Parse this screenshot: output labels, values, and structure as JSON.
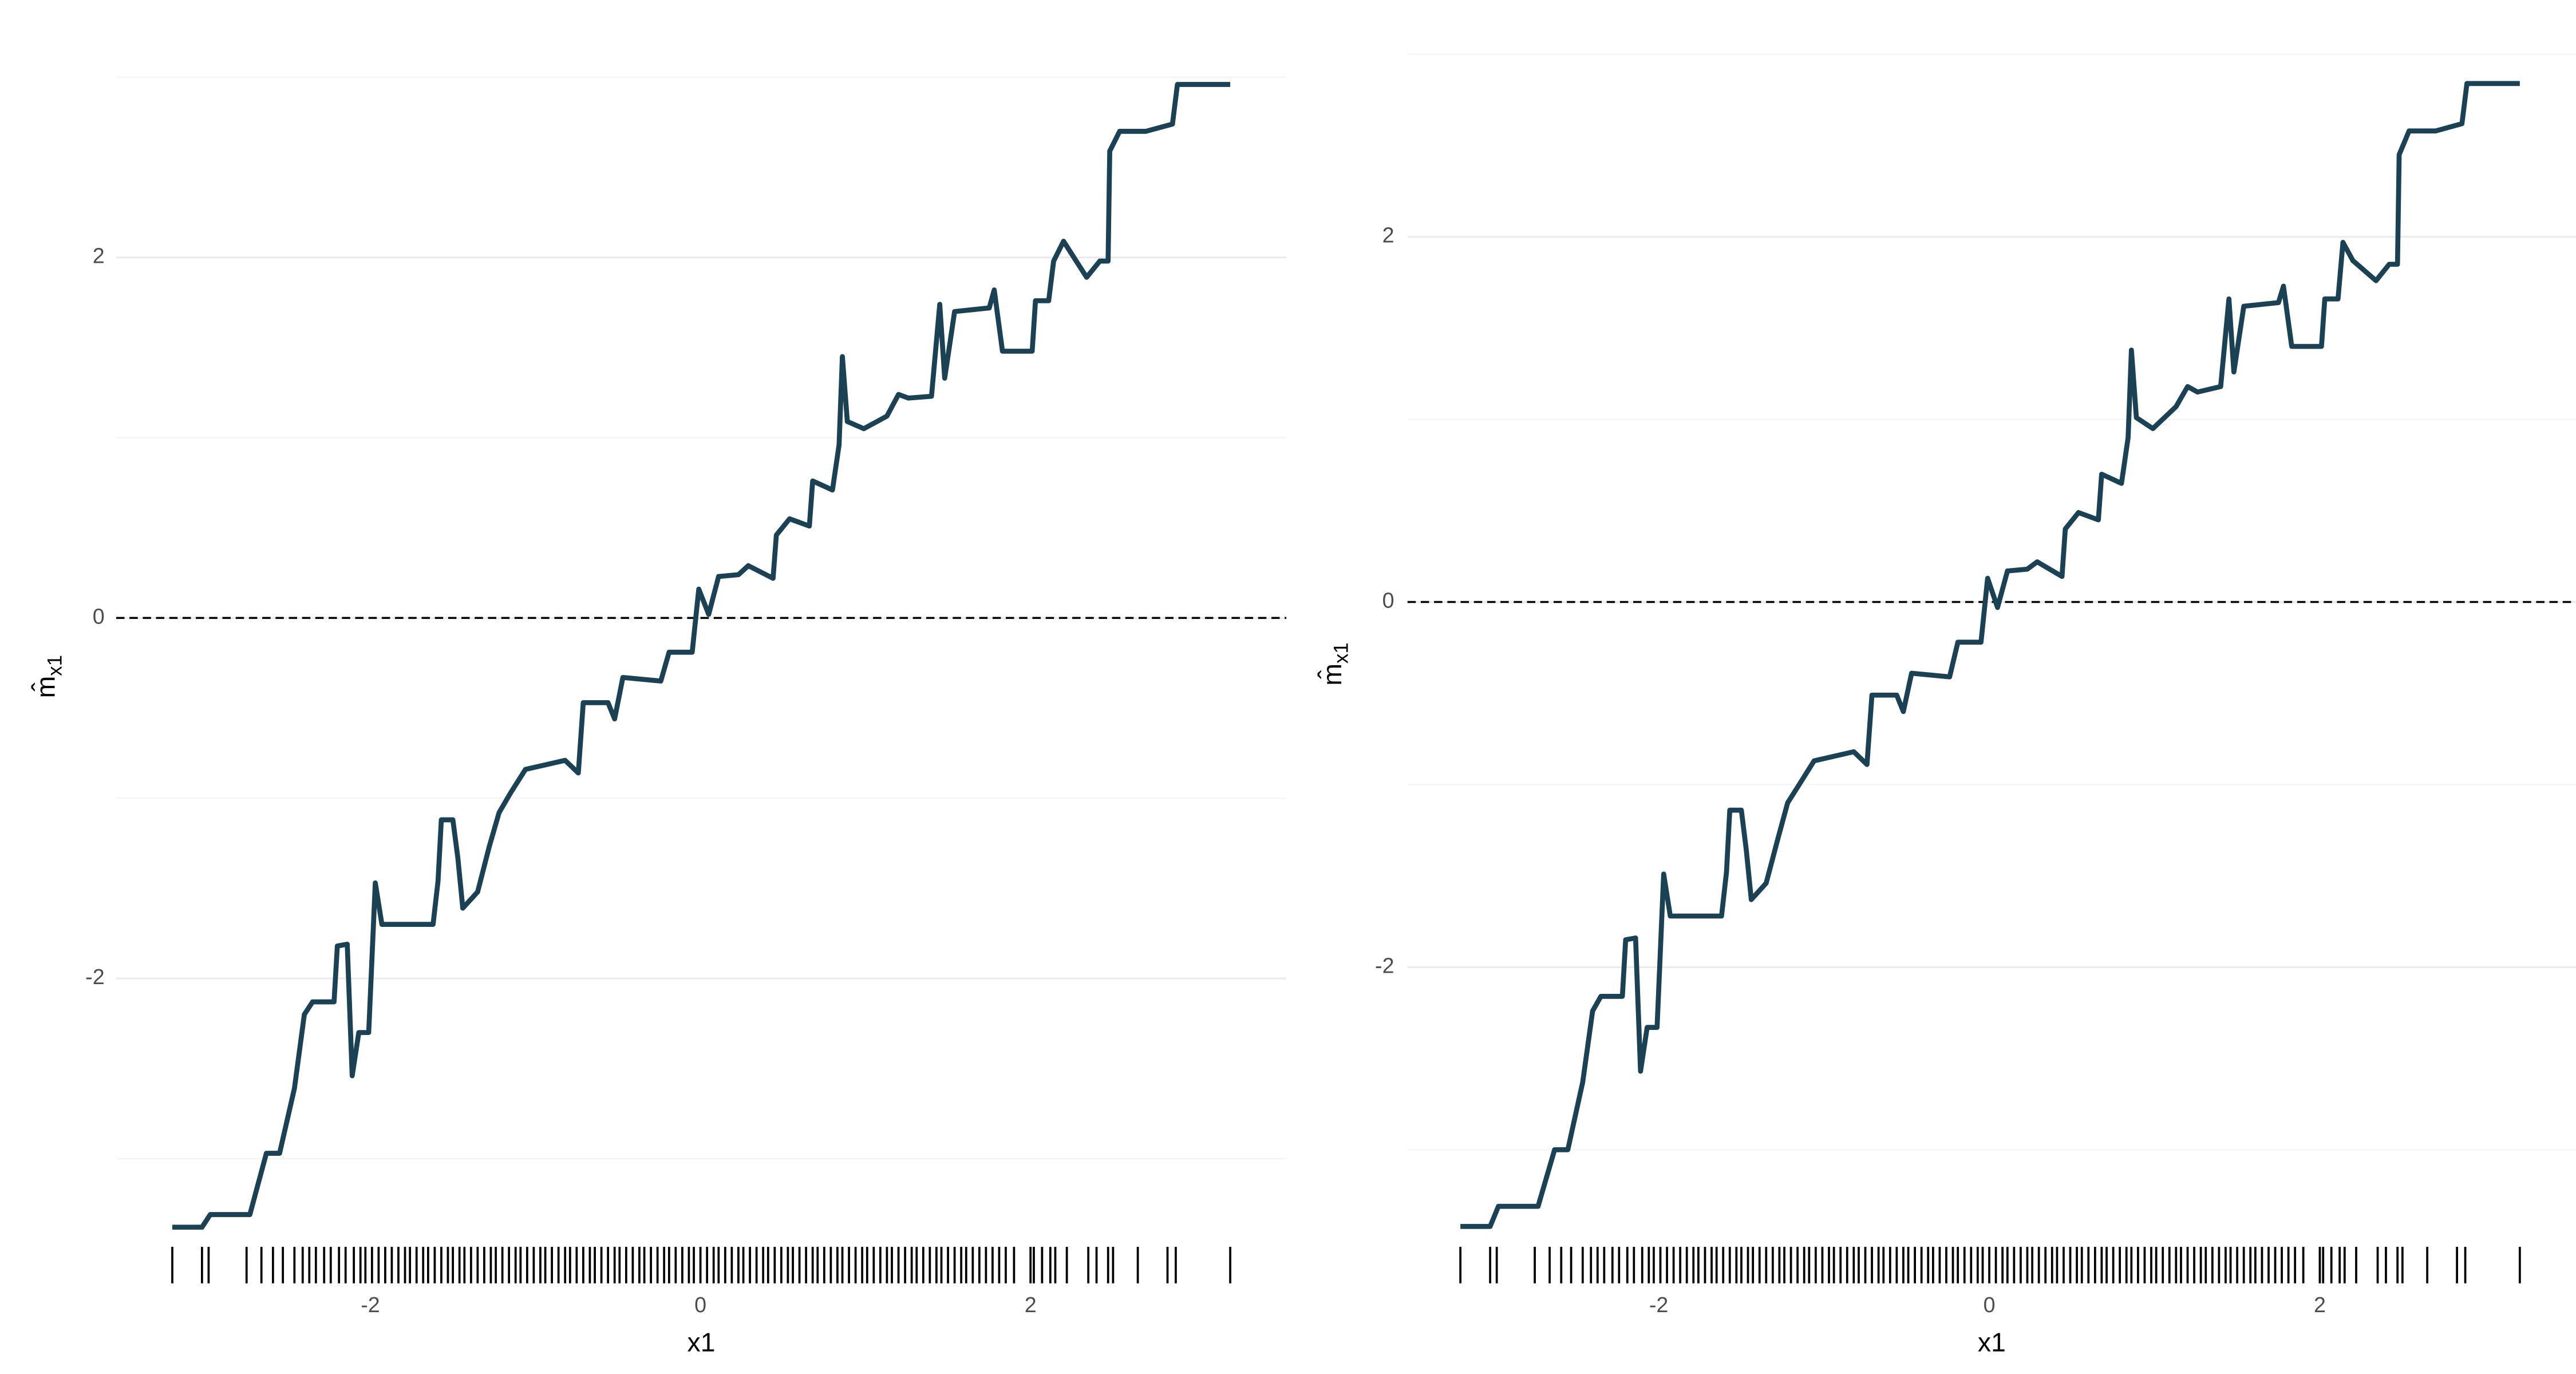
{
  "chart_data": [
    {
      "type": "line",
      "xlabel": "x1",
      "ylabel": "m̂",
      "ylabel_sub": "x1",
      "xlim": [
        -3.54,
        3.55
      ],
      "ylim": [
        -3.71,
        3.06
      ],
      "xticks": [
        -2,
        0,
        2
      ],
      "yticks": [
        -2,
        0,
        2
      ],
      "yminor_ticks": [
        -3,
        -1,
        1,
        3
      ],
      "reference_line": 0,
      "grid": true,
      "series": [
        {
          "color": "#1b4154",
          "x": [
            -3.2,
            -3.02,
            -2.97,
            -2.73,
            -2.63,
            -2.55,
            -2.46,
            -2.4,
            -2.35,
            -2.22,
            -2.2,
            -2.14,
            -2.11,
            -2.07,
            -2.01,
            -1.97,
            -1.93,
            -1.62,
            -1.59,
            -1.57,
            -1.5,
            -1.47,
            -1.44,
            -1.35,
            -1.28,
            -1.22,
            -1.15,
            -1.06,
            -0.82,
            -0.74,
            -0.71,
            -0.56,
            -0.52,
            -0.47,
            -0.24,
            -0.19,
            -0.05,
            -0.01,
            0.05,
            0.11,
            0.23,
            0.29,
            0.44,
            0.46,
            0.54,
            0.66,
            0.68,
            0.8,
            0.84,
            0.86,
            0.89,
            0.99,
            1.13,
            1.2,
            1.26,
            1.4,
            1.45,
            1.48,
            1.54,
            1.75,
            1.78,
            1.83,
            2.01,
            2.03,
            2.11,
            2.14,
            2.2,
            2.34,
            2.42,
            2.47,
            2.48,
            2.54,
            2.7,
            2.86,
            2.89,
            3.21
          ],
          "values": [
            -3.38,
            -3.38,
            -3.31,
            -3.31,
            -2.97,
            -2.97,
            -2.61,
            -2.2,
            -2.13,
            -2.13,
            -1.82,
            -1.81,
            -2.54,
            -2.3,
            -2.3,
            -1.47,
            -1.7,
            -1.7,
            -1.46,
            -1.12,
            -1.12,
            -1.33,
            -1.61,
            -1.52,
            -1.27,
            -1.08,
            -0.97,
            -0.84,
            -0.79,
            -0.86,
            -0.47,
            -0.47,
            -0.56,
            -0.33,
            -0.35,
            -0.19,
            -0.19,
            0.16,
            0.02,
            0.23,
            0.24,
            0.29,
            0.22,
            0.46,
            0.55,
            0.51,
            0.76,
            0.71,
            0.96,
            1.45,
            1.09,
            1.05,
            1.12,
            1.24,
            1.22,
            1.23,
            1.74,
            1.33,
            1.7,
            1.72,
            1.82,
            1.48,
            1.48,
            1.76,
            1.76,
            1.98,
            2.09,
            1.89,
            1.98,
            1.98,
            2.59,
            2.7,
            2.7,
            2.74,
            2.96,
            2.96
          ]
        }
      ],
      "rug": [
        -3.2,
        -3.02,
        -2.98,
        -2.75,
        -2.66,
        -2.59,
        -2.53,
        -2.46,
        -2.41,
        -2.37,
        -2.33,
        -2.28,
        -2.24,
        -2.19,
        -2.15,
        -2.1,
        -2.06,
        -2.03,
        -1.99,
        -1.95,
        -1.91,
        -1.87,
        -1.83,
        -1.79,
        -1.76,
        -1.72,
        -1.68,
        -1.65,
        -1.61,
        -1.57,
        -1.53,
        -1.5,
        -1.46,
        -1.43,
        -1.39,
        -1.35,
        -1.31,
        -1.27,
        -1.24,
        -1.2,
        -1.16,
        -1.12,
        -1.09,
        -1.05,
        -1.01,
        -0.97,
        -0.94,
        -0.9,
        -0.86,
        -0.82,
        -0.79,
        -0.75,
        -0.71,
        -0.67,
        -0.64,
        -0.6,
        -0.56,
        -0.52,
        -0.49,
        -0.45,
        -0.41,
        -0.37,
        -0.34,
        -0.3,
        -0.26,
        -0.22,
        -0.19,
        -0.15,
        -0.11,
        -0.07,
        -0.04,
        0,
        0.04,
        0.08,
        0.11,
        0.15,
        0.19,
        0.23,
        0.26,
        0.3,
        0.34,
        0.38,
        0.41,
        0.45,
        0.49,
        0.53,
        0.56,
        0.6,
        0.64,
        0.68,
        0.71,
        0.75,
        0.79,
        0.83,
        0.86,
        0.9,
        0.94,
        0.98,
        1.01,
        1.05,
        1.09,
        1.13,
        1.16,
        1.2,
        1.24,
        1.28,
        1.31,
        1.35,
        1.39,
        1.43,
        1.46,
        1.5,
        1.54,
        1.58,
        1.61,
        1.65,
        1.69,
        1.73,
        1.77,
        1.81,
        1.85,
        1.9,
        2.0,
        2.02,
        2.07,
        2.12,
        2.15,
        2.22,
        2.35,
        2.4,
        2.47,
        2.5,
        2.65,
        2.83,
        2.88,
        3.21
      ]
    },
    {
      "type": "line",
      "xlabel": "x1",
      "ylabel": "m̂",
      "ylabel_sub": "x1",
      "xlim": [
        -3.52,
        3.55
      ],
      "ylim": [
        -3.75,
        3.07
      ],
      "xticks": [
        -2,
        0,
        2
      ],
      "yticks": [
        -2,
        0,
        2
      ],
      "yminor_ticks": [
        -3,
        -1,
        1,
        3
      ],
      "reference_line": 0,
      "grid": true,
      "series": [
        {
          "color": "#1b4154",
          "x": [
            -3.2,
            -3.02,
            -2.97,
            -2.73,
            -2.63,
            -2.55,
            -2.46,
            -2.4,
            -2.35,
            -2.22,
            -2.2,
            -2.14,
            -2.11,
            -2.07,
            -2.01,
            -1.97,
            -1.93,
            -1.62,
            -1.59,
            -1.57,
            -1.5,
            -1.47,
            -1.44,
            -1.35,
            -1.28,
            -1.22,
            -1.15,
            -1.06,
            -0.82,
            -0.74,
            -0.71,
            -0.56,
            -0.52,
            -0.47,
            -0.24,
            -0.19,
            -0.05,
            -0.01,
            0.05,
            0.11,
            0.23,
            0.29,
            0.44,
            0.46,
            0.54,
            0.66,
            0.68,
            0.8,
            0.84,
            0.86,
            0.89,
            0.99,
            1.13,
            1.2,
            1.26,
            1.4,
            1.45,
            1.48,
            1.54,
            1.75,
            1.78,
            1.83,
            2.01,
            2.03,
            2.11,
            2.14,
            2.2,
            2.34,
            2.42,
            2.47,
            2.48,
            2.54,
            2.7,
            2.86,
            2.89,
            3.21
          ],
          "values": [
            -3.42,
            -3.42,
            -3.31,
            -3.31,
            -3.0,
            -3.0,
            -2.63,
            -2.24,
            -2.16,
            -2.16,
            -1.85,
            -1.84,
            -2.57,
            -2.33,
            -2.33,
            -1.49,
            -1.72,
            -1.72,
            -1.48,
            -1.14,
            -1.14,
            -1.36,
            -1.63,
            -1.54,
            -1.3,
            -1.1,
            -1.0,
            -0.87,
            -0.82,
            -0.89,
            -0.51,
            -0.51,
            -0.6,
            -0.39,
            -0.41,
            -0.22,
            -0.22,
            0.13,
            -0.03,
            0.17,
            0.18,
            0.22,
            0.14,
            0.4,
            0.49,
            0.45,
            0.7,
            0.65,
            0.9,
            1.38,
            1.01,
            0.95,
            1.07,
            1.18,
            1.15,
            1.18,
            1.66,
            1.26,
            1.62,
            1.64,
            1.73,
            1.4,
            1.4,
            1.66,
            1.66,
            1.97,
            1.87,
            1.76,
            1.85,
            1.85,
            2.45,
            2.58,
            2.58,
            2.62,
            2.84,
            2.84
          ]
        }
      ],
      "rug": [
        -3.2,
        -3.02,
        -2.98,
        -2.75,
        -2.66,
        -2.59,
        -2.53,
        -2.46,
        -2.41,
        -2.37,
        -2.33,
        -2.28,
        -2.24,
        -2.19,
        -2.15,
        -2.1,
        -2.06,
        -2.03,
        -1.99,
        -1.95,
        -1.91,
        -1.87,
        -1.83,
        -1.79,
        -1.76,
        -1.72,
        -1.68,
        -1.65,
        -1.61,
        -1.57,
        -1.53,
        -1.5,
        -1.46,
        -1.43,
        -1.39,
        -1.35,
        -1.31,
        -1.27,
        -1.24,
        -1.2,
        -1.16,
        -1.12,
        -1.09,
        -1.05,
        -1.01,
        -0.97,
        -0.94,
        -0.9,
        -0.86,
        -0.82,
        -0.79,
        -0.75,
        -0.71,
        -0.67,
        -0.64,
        -0.6,
        -0.56,
        -0.52,
        -0.49,
        -0.45,
        -0.41,
        -0.37,
        -0.34,
        -0.3,
        -0.26,
        -0.22,
        -0.19,
        -0.15,
        -0.11,
        -0.07,
        -0.04,
        0,
        0.04,
        0.08,
        0.11,
        0.15,
        0.19,
        0.23,
        0.26,
        0.3,
        0.34,
        0.38,
        0.41,
        0.45,
        0.49,
        0.53,
        0.56,
        0.6,
        0.64,
        0.68,
        0.71,
        0.75,
        0.79,
        0.83,
        0.86,
        0.9,
        0.94,
        0.98,
        1.01,
        1.05,
        1.09,
        1.13,
        1.16,
        1.2,
        1.24,
        1.28,
        1.31,
        1.35,
        1.39,
        1.43,
        1.46,
        1.5,
        1.54,
        1.58,
        1.61,
        1.65,
        1.69,
        1.73,
        1.77,
        1.81,
        1.85,
        1.9,
        2.0,
        2.02,
        2.07,
        2.12,
        2.15,
        2.22,
        2.35,
        2.4,
        2.47,
        2.5,
        2.65,
        2.83,
        2.88,
        3.21
      ]
    }
  ]
}
